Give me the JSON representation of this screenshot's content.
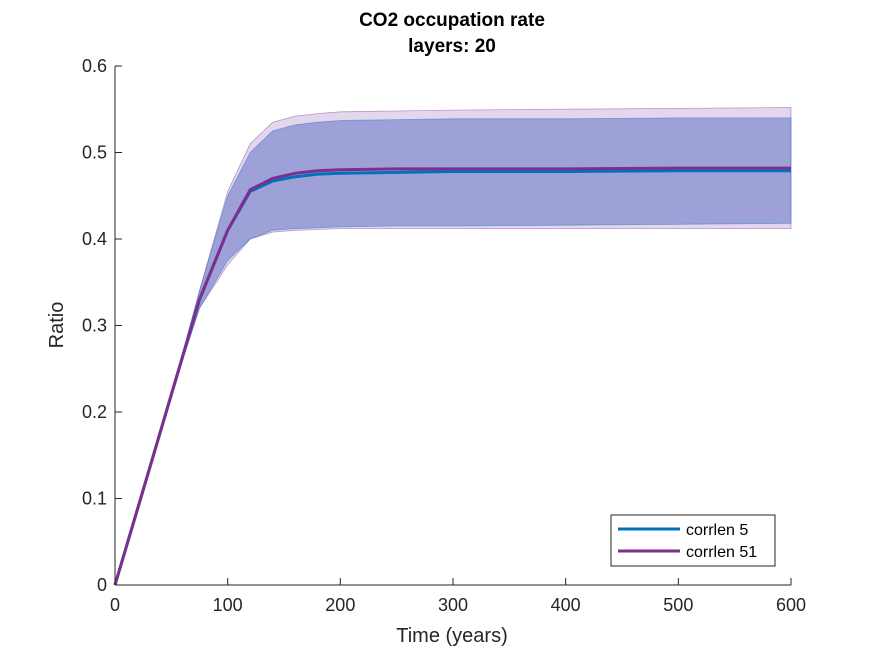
{
  "chart_data": {
    "type": "line",
    "title": "CO2 occupation rate",
    "subtitle": "layers: 20",
    "xlabel": "Time (years)",
    "ylabel": "Ratio",
    "xlim": [
      0,
      600
    ],
    "ylim": [
      0,
      0.6
    ],
    "xticks": [
      "0",
      "100",
      "200",
      "300",
      "400",
      "500",
      "600"
    ],
    "yticks": [
      "0",
      "0.1",
      "0.2",
      "0.3",
      "0.4",
      "0.5",
      "0.6"
    ],
    "grid": false,
    "legend_position": "bottom-right",
    "series": [
      {
        "name": "corrlen 5",
        "color": "#0072BD",
        "band_color": "#4A5FBF",
        "x": [
          0,
          25,
          50,
          75,
          100,
          120,
          140,
          160,
          180,
          200,
          250,
          300,
          400,
          500,
          600
        ],
        "values": [
          0,
          0.11,
          0.22,
          0.33,
          0.41,
          0.455,
          0.467,
          0.472,
          0.475,
          0.476,
          0.477,
          0.478,
          0.478,
          0.479,
          0.479
        ],
        "upper": [
          0,
          0.11,
          0.22,
          0.34,
          0.45,
          0.5,
          0.525,
          0.532,
          0.535,
          0.537,
          0.538,
          0.539,
          0.539,
          0.54,
          0.54
        ],
        "lower": [
          0,
          0.11,
          0.22,
          0.32,
          0.375,
          0.4,
          0.41,
          0.412,
          0.413,
          0.414,
          0.415,
          0.415,
          0.416,
          0.417,
          0.418
        ]
      },
      {
        "name": "corrlen 51",
        "color": "#7E2F8E",
        "band_color": "#A77AC4",
        "x": [
          0,
          25,
          50,
          75,
          100,
          120,
          140,
          160,
          180,
          200,
          250,
          300,
          400,
          500,
          600
        ],
        "values": [
          0,
          0.11,
          0.22,
          0.33,
          0.41,
          0.457,
          0.47,
          0.476,
          0.479,
          0.48,
          0.481,
          0.481,
          0.481,
          0.482,
          0.482
        ],
        "upper": [
          0,
          0.11,
          0.22,
          0.34,
          0.455,
          0.51,
          0.535,
          0.542,
          0.545,
          0.547,
          0.548,
          0.549,
          0.55,
          0.551,
          0.552
        ],
        "lower": [
          0,
          0.11,
          0.22,
          0.32,
          0.37,
          0.4,
          0.408,
          0.41,
          0.411,
          0.412,
          0.412,
          0.412,
          0.412,
          0.412,
          0.412
        ]
      }
    ]
  }
}
